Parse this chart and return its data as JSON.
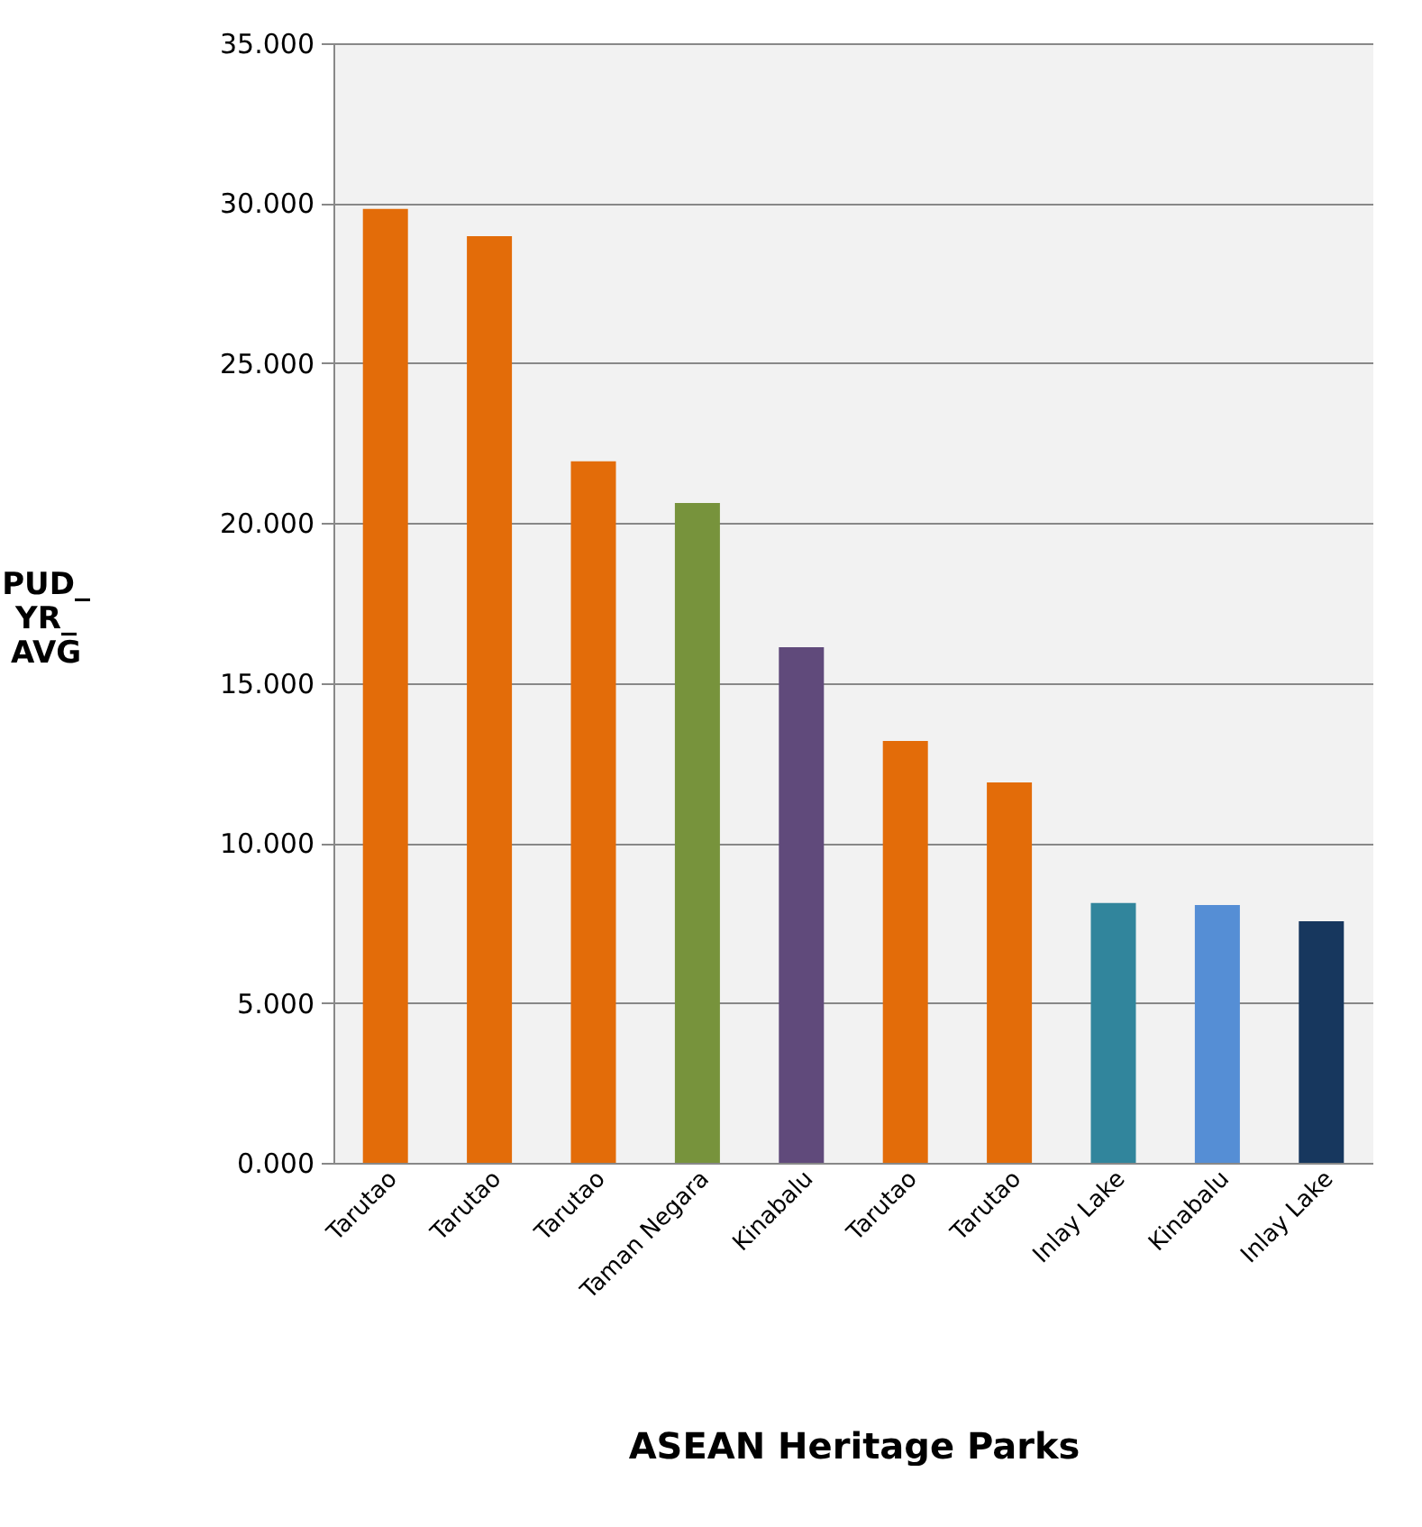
{
  "chart_data": {
    "type": "bar",
    "xlabel": "ASEAN Heritage Parks",
    "ylabel": "PUD_YR_AVG",
    "categories": [
      "Tarutao",
      "Tarutao",
      "Tarutao",
      "Taman Negara",
      "Kinabalu",
      "Tarutao",
      "Tarutao",
      "Inlay Lake",
      "Kinabalu",
      "Inlay Lake"
    ],
    "values": [
      29.82,
      28.97,
      21.93,
      20.63,
      16.12,
      13.19,
      11.89,
      8.12,
      8.06,
      7.55
    ],
    "colors": [
      "#e36c09",
      "#e36c09",
      "#e36c09",
      "#77933c",
      "#604a7b",
      "#e36c09",
      "#e36c09",
      "#31859c",
      "#558ed5",
      "#17375e"
    ],
    "ylim": [
      0,
      35
    ],
    "yticks": [
      {
        "value": 0,
        "label": "0.000"
      },
      {
        "value": 5,
        "label": "5.000"
      },
      {
        "value": 10,
        "label": "10.000"
      },
      {
        "value": 15,
        "label": "15.000"
      },
      {
        "value": 20,
        "label": "20.000"
      },
      {
        "value": 25,
        "label": "25.000"
      },
      {
        "value": 30,
        "label": "30.000"
      },
      {
        "value": 35,
        "label": "35.000"
      }
    ],
    "grid": "y"
  }
}
